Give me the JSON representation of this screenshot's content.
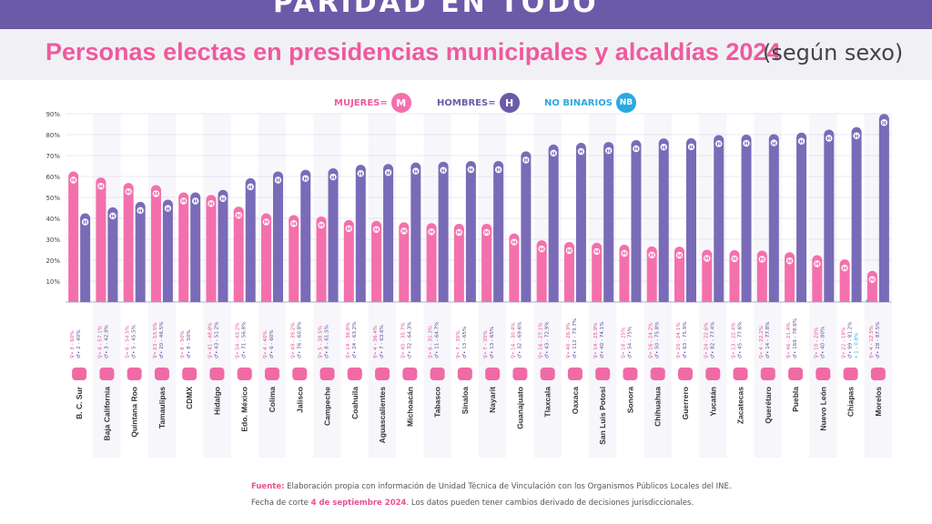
{
  "header": {
    "banner": "PARIDAD EN TODO"
  },
  "chart_data": {
    "type": "bar",
    "title": "Personas electas en presidencias municipales y alcaldías 2024",
    "subtitle": "(según sexo)",
    "ylim": [
      0,
      90
    ],
    "yticks": [
      "10%",
      "20%",
      "30%",
      "40%",
      "50%",
      "60%",
      "70%",
      "80%",
      "90%"
    ],
    "categories": [
      "B. C. Sur",
      "Baja California",
      "Quintana Roo",
      "Tamaulipas",
      "CDMX",
      "Hidalgo",
      "Edo. México",
      "Colima",
      "Jalisco",
      "Campeche",
      "Coahuila",
      "Aguascalientes",
      "Michoacán",
      "Tabasco",
      "Sinaloa",
      "Nayarit",
      "Guanajuato",
      "Tlaxcala",
      "Oaxaca",
      "San Luis Potosí",
      "Sonora",
      "Chihuahua",
      "Guerrero",
      "Yucatán",
      "Zacatecas",
      "Querétaro",
      "Puebla",
      "Nuevo León",
      "Chiapas",
      "Morelos"
    ],
    "series": [
      {
        "name": "MUJERES",
        "values": [
          60,
          57.1,
          54.5,
          53.5,
          50,
          48.8,
          43.2,
          40,
          39.2,
          38.5,
          36.8,
          36.4,
          35.7,
          35.3,
          35,
          35,
          30.4,
          27.1,
          26.3,
          25.9,
          25,
          24.2,
          24.1,
          22.6,
          22.4,
          22.2,
          21.4,
          20,
          18,
          12.5
        ]
      },
      {
        "name": "HOMBRES",
        "values": [
          40,
          42.9,
          45.5,
          46.5,
          50,
          51.2,
          56.8,
          60,
          60.8,
          61.5,
          63.2,
          63.6,
          64.3,
          64.7,
          65,
          65,
          69.6,
          72.9,
          73.7,
          74.1,
          75,
          75.8,
          75.9,
          77.4,
          77.6,
          77.8,
          78.6,
          80,
          81.2,
          87.5
        ]
      },
      {
        "name": "NO BINARIOS",
        "values": [
          0,
          0,
          0,
          0,
          0,
          0,
          0,
          0,
          0,
          0,
          0,
          0,
          0,
          0,
          0,
          0,
          0,
          0,
          0,
          0,
          0,
          0,
          0,
          0,
          0,
          0,
          0,
          0,
          0.8,
          0
        ]
      }
    ],
    "annotations": [
      [
        "♀• 3 - 60%",
        "♂• 2 - 40%"
      ],
      [
        "♀• 4 - 57.1%",
        "♂• 3 - 42.9%"
      ],
      [
        "♀• 6 - 54.5%",
        "♂• 5 - 45.5%"
      ],
      [
        "♀• 23 - 53.5%",
        "♂• 20 - 46.5%"
      ],
      [
        "♀• 8 - 50%",
        "♂• 8 - 50%"
      ],
      [
        "♀• 41 - 48.8%",
        "♂• 43 - 51.2%"
      ],
      [
        "♀• 54 - 43.2%",
        "♂• 71 - 56.8%"
      ],
      [
        "♀• 4 - 40%",
        "♂• 6 - 60%"
      ],
      [
        "♀• 49 - 39.2%",
        "♂• 76 - 60.8%"
      ],
      [
        "♀• 5 - 38.5%",
        "♂• 8 - 61.5%"
      ],
      [
        "♀• 14 - 36.8%",
        "♂• 24 - 63.2%"
      ],
      [
        "♀• 4 - 36.4%",
        "♂• 7 - 63.6%"
      ],
      [
        "♀• 40 - 35.7%",
        "♂• 72 - 64.3%"
      ],
      [
        "♀• 6 - 35.3%",
        "♂• 11 - 64.7%"
      ],
      [
        "♀• 7 - 35%",
        "♂• 13 - 65%"
      ],
      [
        "♀• 7 - 35%",
        "♂• 13 - 65%"
      ],
      [
        "♀• 14 - 30.4%",
        "♂• 32 - 69.6%"
      ],
      [
        "♀• 16 - 27.1%",
        "♂• 43 - 72.9%"
      ],
      [
        "♀• 40 - 26.3%",
        "♂• 112 - 73.7%"
      ],
      [
        "♀• 14 - 25.9%",
        "♂• 40 - 74.1%"
      ],
      [
        "♀• 18 - 25%",
        "♂• 54 - 75%"
      ],
      [
        "♀• 16 - 24.2%",
        "♂• 50 - 75.8%"
      ],
      [
        "♀• 20 - 24.1%",
        "♂• 63 - 75.9%"
      ],
      [
        "♀• 24 - 22.6%",
        "♂• 82 - 77.4%"
      ],
      [
        "♀• 13 - 22.4%",
        "♂• 45 - 77.6%"
      ],
      [
        "♀• 4 - 22.2%",
        "♂• 14 - 77.8%"
      ],
      [
        "♀• 46 - 21.4%",
        "♂• 169 - 78.6%"
      ],
      [
        "♀• 10 - 20%",
        "♂• 40 - 80%"
      ],
      [
        "♀• 22 - 18%",
        "♂• 99 - 81.2%",
        "• 1 - 0.8%"
      ],
      [
        "♀• 4 - 12.5%",
        "♂• 28 - 87.5%"
      ]
    ],
    "grid": true,
    "legend": "top"
  },
  "legend": {
    "women_label": "MUJERES=",
    "women_badge": "M",
    "men_label": "HOMBRES=",
    "men_badge": "H",
    "nb_label": "NO BINARIOS",
    "nb_badge": "NB"
  },
  "footer": {
    "source_label": "Fuente:",
    "source_text": " Elaboración propia con información de Unidad Técnica de Vinculación con los Organismos Públicos Locales del INE.",
    "cutoff_prefix": "Fecha de corte ",
    "cutoff_date": "4 de septiembre 2024",
    "cutoff_suffix": ". Los datos pueden tener cambios derivado de decisiones jurisdiccionales."
  },
  "colors": {
    "women": "#f470ac",
    "men": "#7a6bb8",
    "nonbinary": "#29a9e0",
    "title": "#ee5a9d",
    "banner": "#6b5aa8"
  }
}
